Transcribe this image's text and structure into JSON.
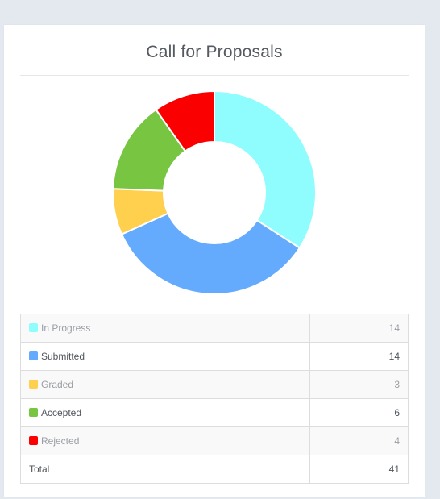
{
  "card": {
    "title": "Call for Proposals"
  },
  "chart_data": {
    "type": "pie",
    "title": "Call for Proposals",
    "donut": true,
    "categories": [
      "In Progress",
      "Submitted",
      "Graded",
      "Accepted",
      "Rejected"
    ],
    "values": [
      14,
      14,
      3,
      6,
      4
    ],
    "colors": [
      "#8ffcfd",
      "#64abfd",
      "#fed04d",
      "#77c541",
      "#fb0000"
    ],
    "total": 41
  },
  "legend_table": {
    "rows": [
      {
        "label": "In Progress",
        "value": "14",
        "color": "#8ffcfd"
      },
      {
        "label": "Submitted",
        "value": "14",
        "color": "#64abfd"
      },
      {
        "label": "Graded",
        "value": "3",
        "color": "#fed04d"
      },
      {
        "label": "Accepted",
        "value": "6",
        "color": "#77c541"
      },
      {
        "label": "Rejected",
        "value": "4",
        "color": "#fb0000"
      }
    ],
    "total_label": "Total",
    "total_value": "41"
  }
}
